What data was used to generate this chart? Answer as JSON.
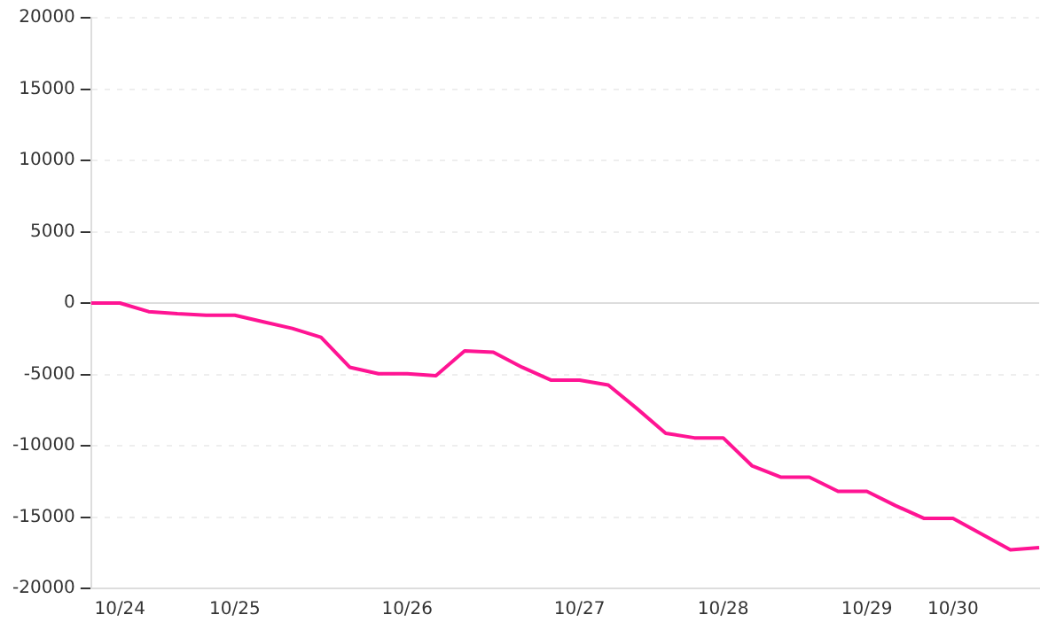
{
  "chart_data": {
    "type": "line",
    "categories": [
      null,
      "10/24",
      null,
      null,
      null,
      "10/25",
      null,
      null,
      null,
      null,
      null,
      "10/26",
      null,
      null,
      null,
      null,
      null,
      "10/27",
      null,
      null,
      null,
      null,
      "10/28",
      null,
      null,
      null,
      null,
      "10/29",
      null,
      null,
      "10/30",
      null,
      null,
      null
    ],
    "series": [
      {
        "color": "#ff1493",
        "values": [
          0,
          0,
          -600,
          -750,
          -850,
          -850,
          -1320,
          -1780,
          -2400,
          -4500,
          -4950,
          -4950,
          -5100,
          -3350,
          -3450,
          -4500,
          -5400,
          -5400,
          -5750,
          -7400,
          -9125,
          -9450,
          -9450,
          -11400,
          -12200,
          -12200,
          -13200,
          -13200,
          -14200,
          -15100,
          -15100,
          -16200,
          -17300,
          -17150
        ]
      }
    ],
    "ylim": [
      -20000,
      20000
    ],
    "yticks": [
      -20000,
      -15000,
      -10000,
      -5000,
      0,
      5000,
      10000,
      15000,
      20000
    ],
    "grid": "y",
    "legend": false,
    "marker": "none",
    "line_style": "solid"
  }
}
